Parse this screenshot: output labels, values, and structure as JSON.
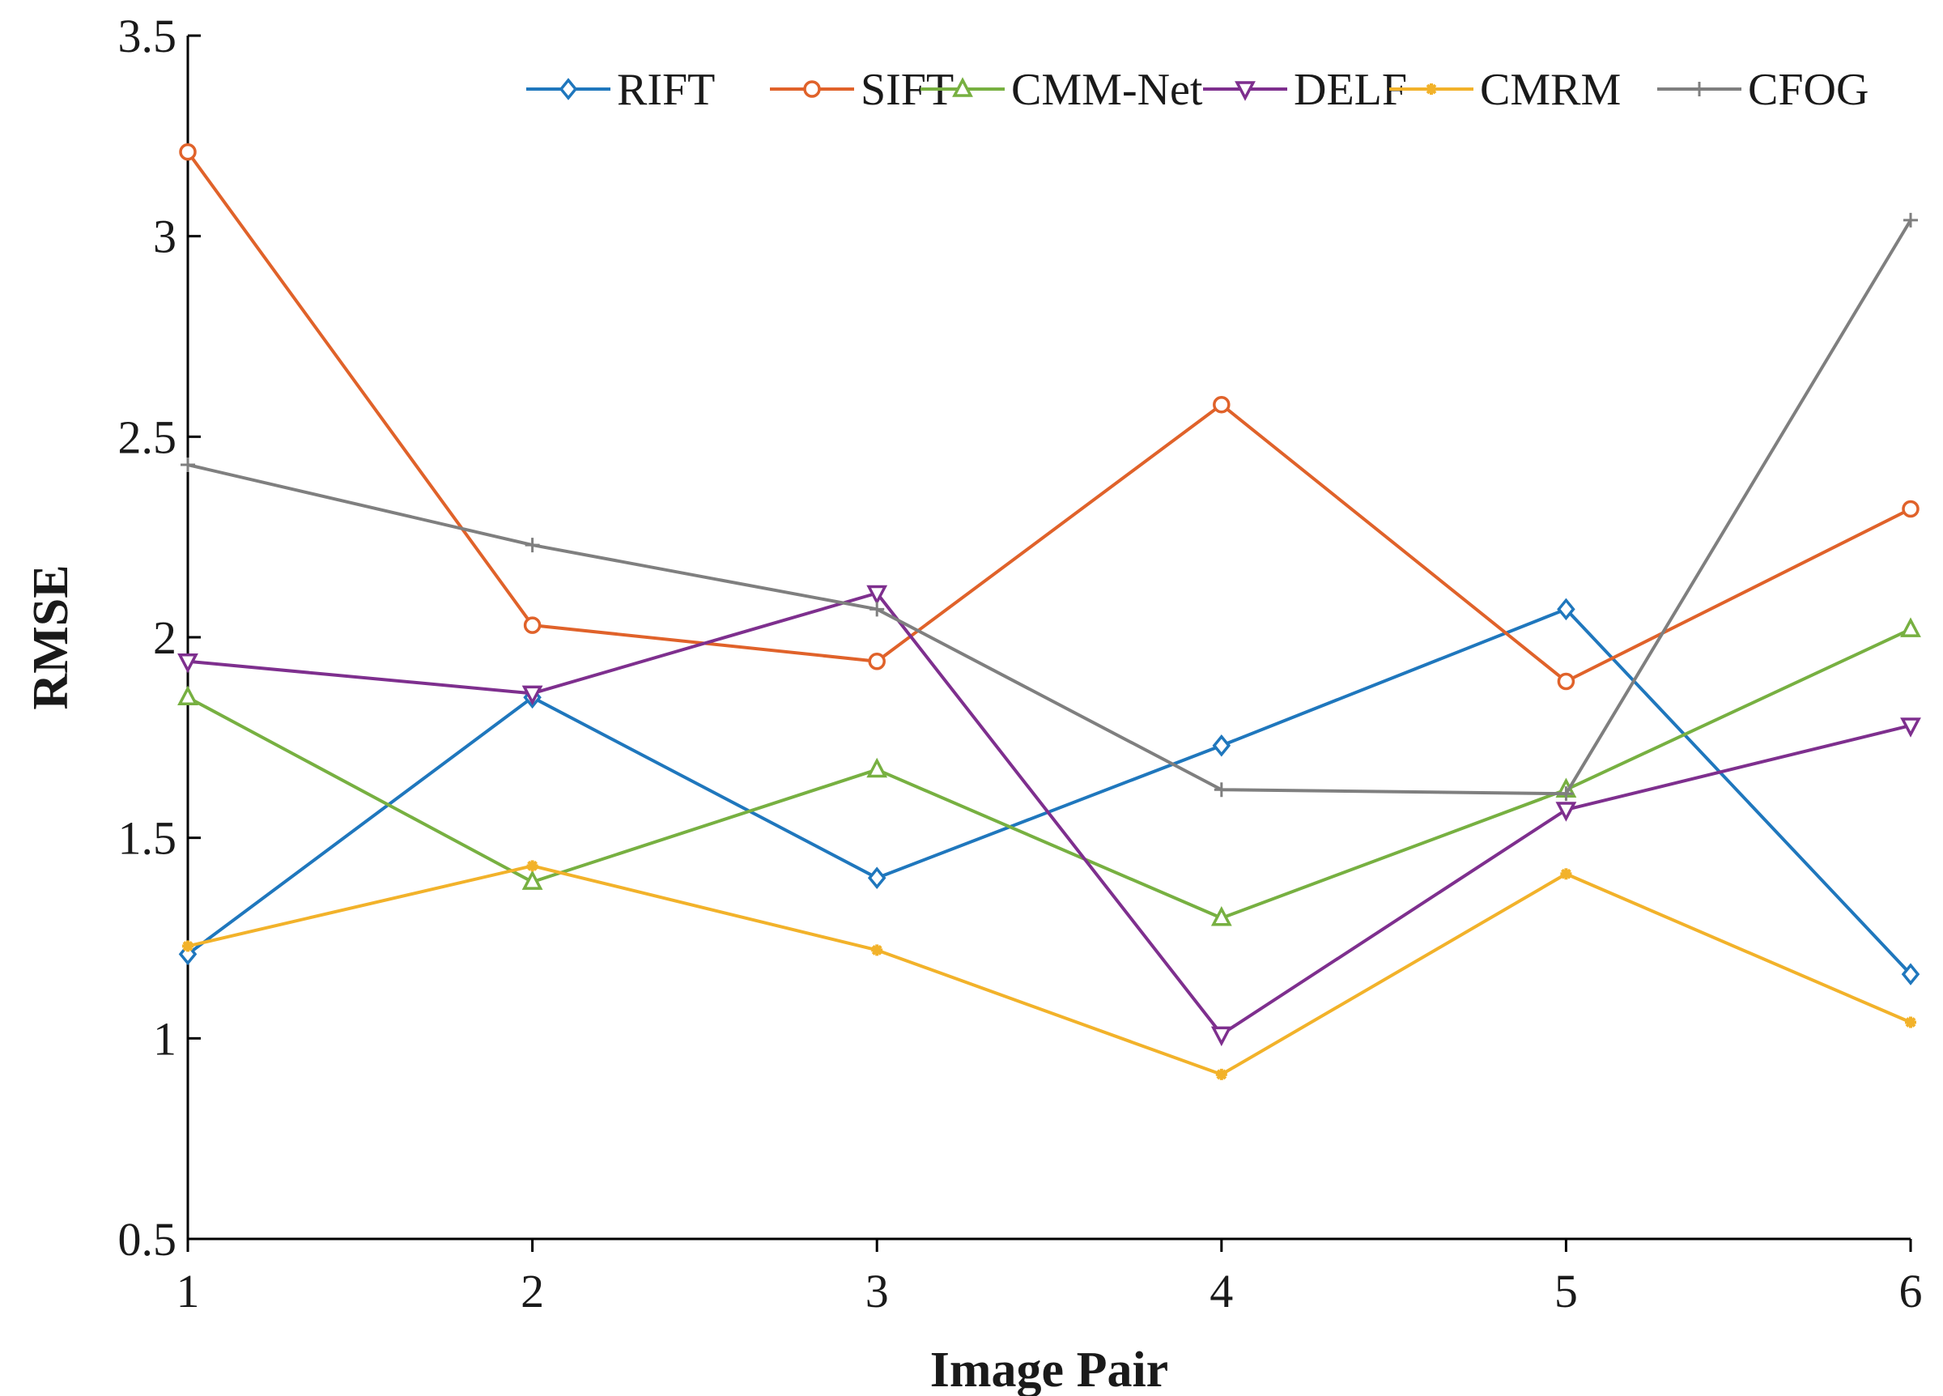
{
  "chart_data": {
    "type": "line",
    "title": "",
    "xlabel": "Image Pair",
    "ylabel": "RMSE",
    "x": [
      1,
      2,
      3,
      4,
      5,
      6
    ],
    "x_tick_labels": [
      "1",
      "2",
      "3",
      "4",
      "5",
      "6"
    ],
    "ylim": [
      0.5,
      3.5
    ],
    "y_ticks": [
      0.5,
      1,
      1.5,
      2,
      2.5,
      3,
      3.5
    ],
    "y_tick_labels": [
      "0.5",
      "1",
      "1.5",
      "2",
      "2.5",
      "3",
      "3.5"
    ],
    "grid": false,
    "legend_position": "top",
    "series": [
      {
        "name": "RIFT",
        "color": "#1f77bd",
        "marker": "diamond",
        "values": [
          1.21,
          1.85,
          1.4,
          1.73,
          2.07,
          1.16
        ]
      },
      {
        "name": "SIFT",
        "color": "#e0622a",
        "marker": "circle",
        "values": [
          3.21,
          2.03,
          1.94,
          2.58,
          1.89,
          2.32
        ]
      },
      {
        "name": "CMM-Net",
        "color": "#77b041",
        "marker": "triangle-up",
        "values": [
          1.85,
          1.39,
          1.67,
          1.3,
          1.62,
          2.02
        ]
      },
      {
        "name": "DELF",
        "color": "#7e2f8e",
        "marker": "triangle-down",
        "values": [
          1.94,
          1.86,
          2.11,
          1.01,
          1.57,
          1.78
        ]
      },
      {
        "name": "CMRM",
        "color": "#f2b22a",
        "marker": "asterisk",
        "values": [
          1.23,
          1.43,
          1.22,
          0.91,
          1.41,
          1.04
        ]
      },
      {
        "name": "CFOG",
        "color": "#7f7f7f",
        "marker": "plus",
        "values": [
          2.43,
          2.23,
          2.07,
          1.62,
          1.61,
          3.04
        ]
      }
    ]
  }
}
